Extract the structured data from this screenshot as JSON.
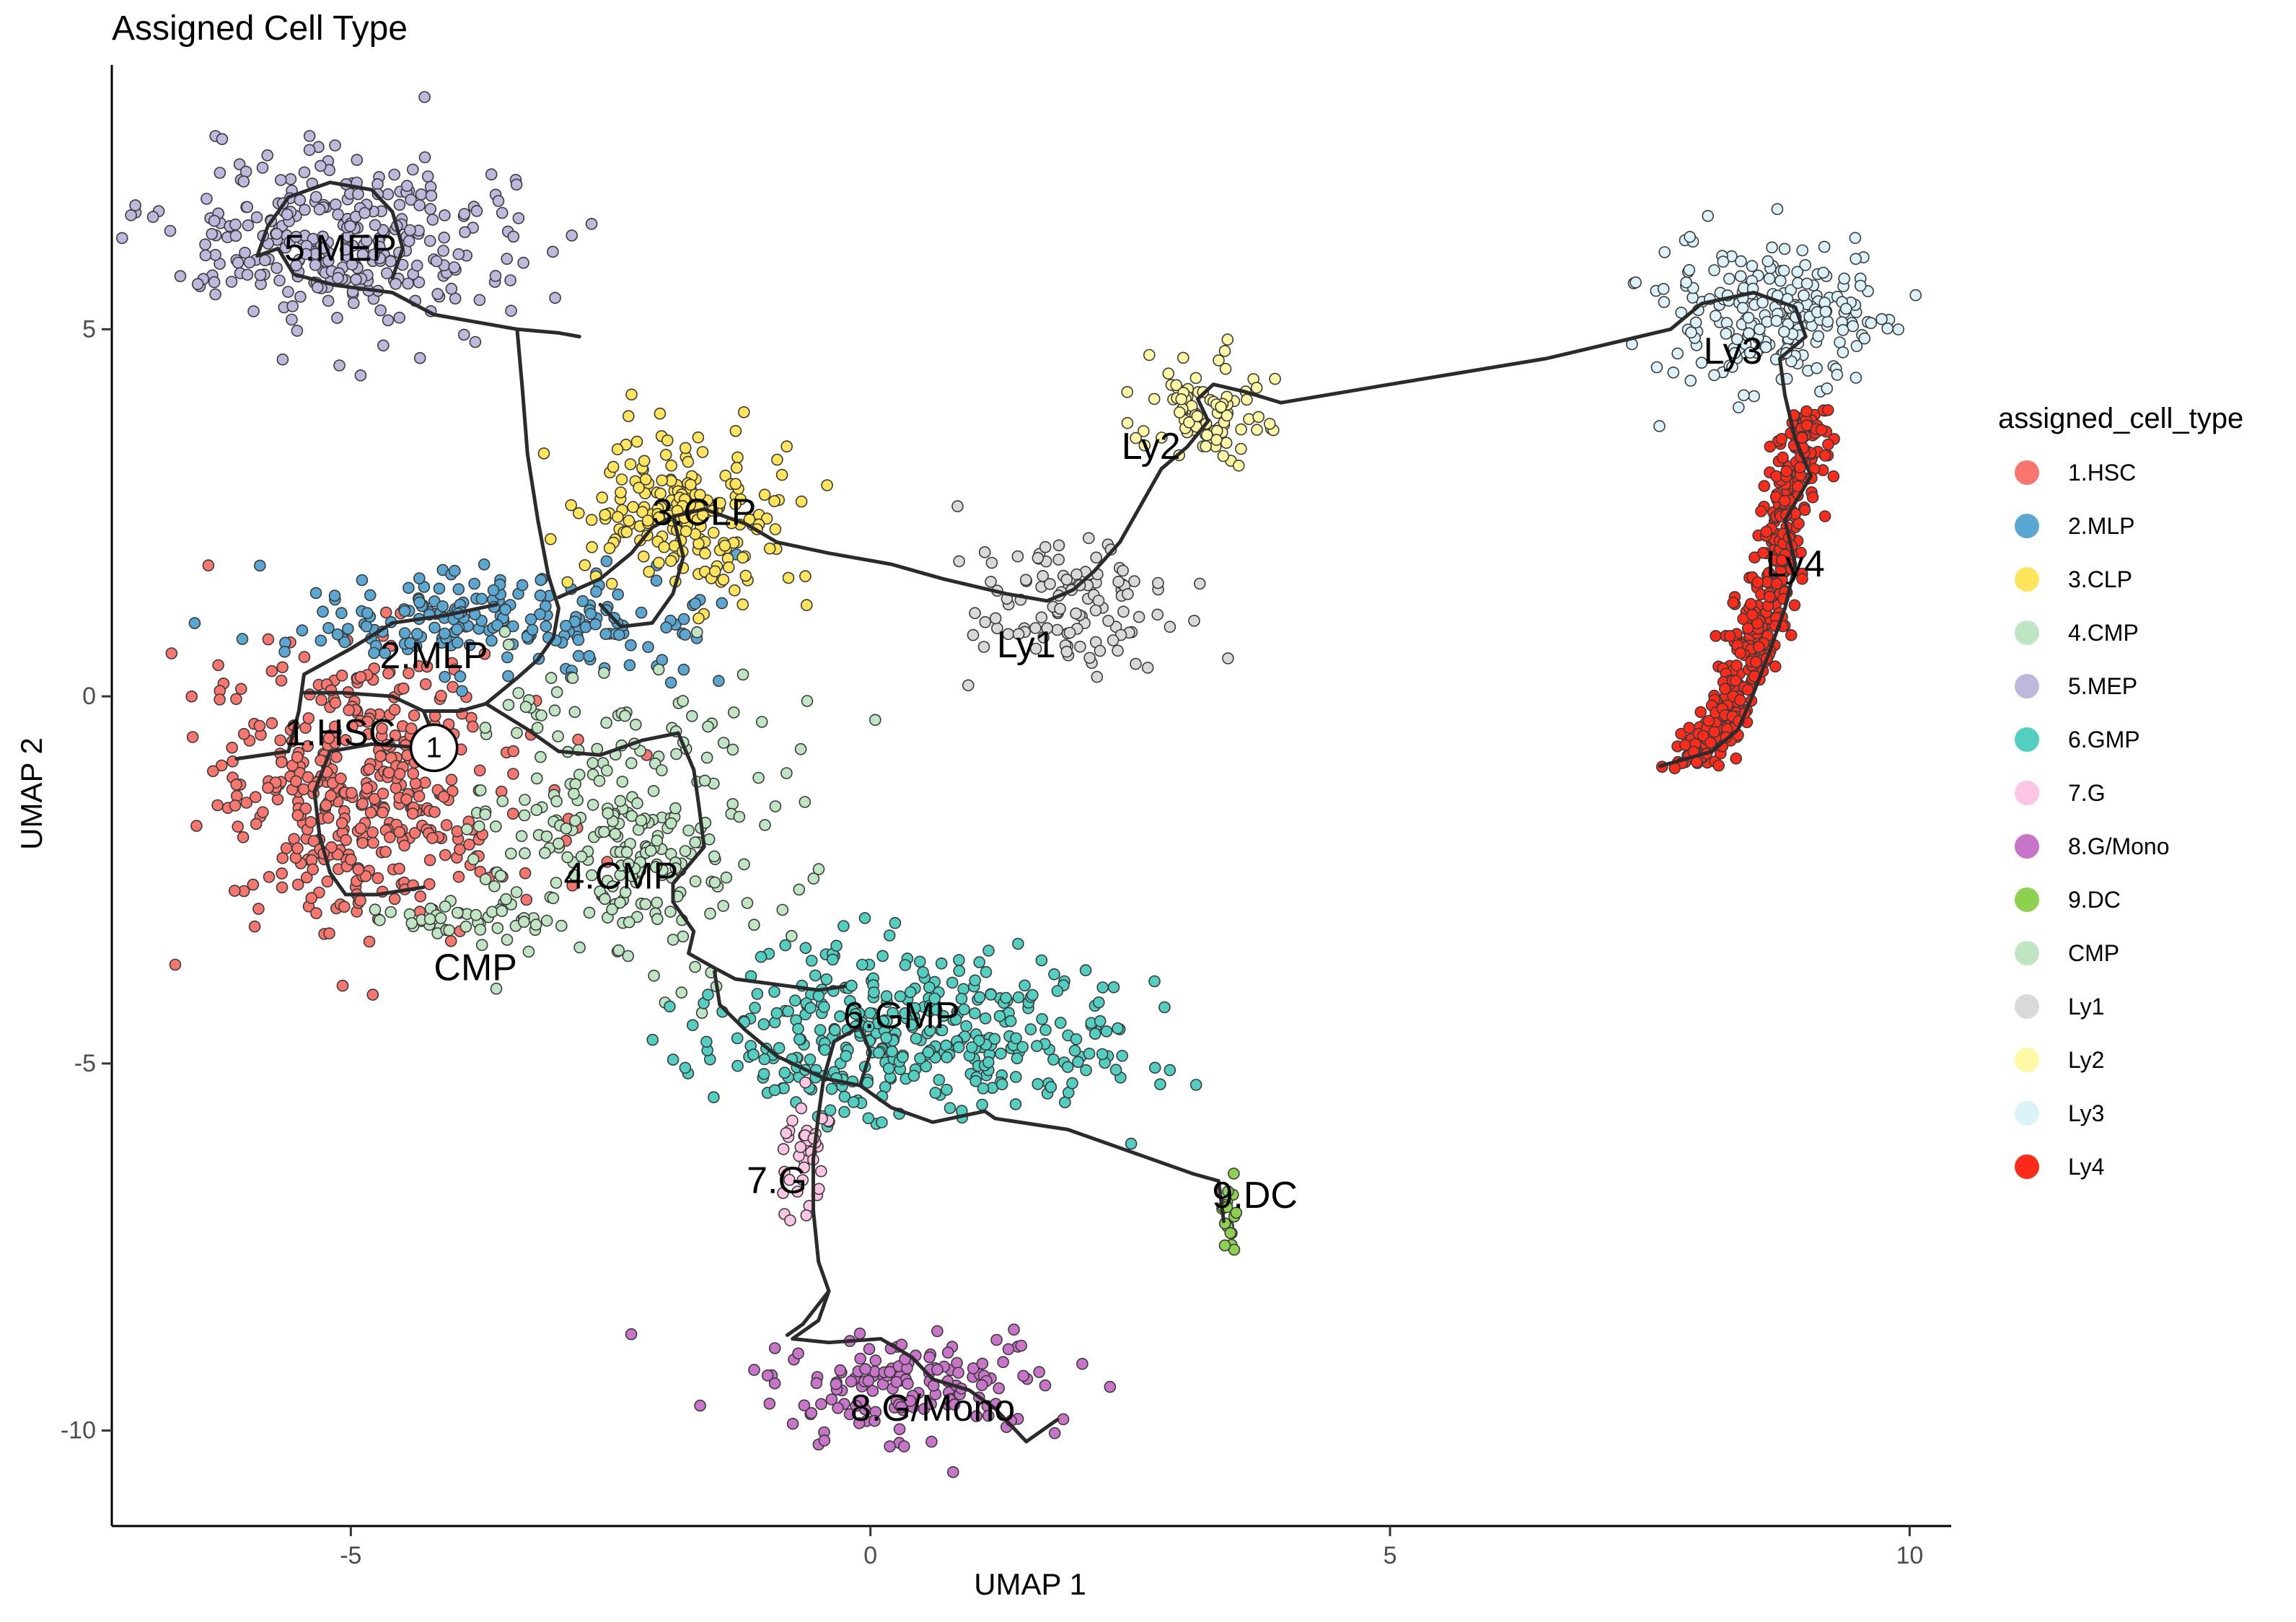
{
  "chart_data": {
    "type": "scatter",
    "title": "Assigned Cell Type",
    "xlabel": "UMAP 1",
    "ylabel": "UMAP 2",
    "xlim": [
      -7.3,
      10.4
    ],
    "ylim": [
      -11.3,
      8.6
    ],
    "x_ticks": [
      -5,
      0,
      5,
      10
    ],
    "y_ticks": [
      -10,
      -5,
      0,
      5
    ],
    "x_tick_labels": [
      "-5",
      "0",
      "5",
      "10"
    ],
    "y_tick_labels": [
      "-10",
      "-5",
      "0",
      "5"
    ],
    "grid": false,
    "legend": {
      "title": "assigned_cell_type",
      "placement": "right",
      "entries": [
        {
          "label": "1.HSC",
          "color": "#F8766D"
        },
        {
          "label": "2.MLP",
          "color": "#5AA8D2"
        },
        {
          "label": "3.CLP",
          "color": "#FFE55C"
        },
        {
          "label": "4.CMP",
          "color": "#BFE5C2"
        },
        {
          "label": "5.MEP",
          "color": "#BDB8DC"
        },
        {
          "label": "6.GMP",
          "color": "#52CFC1"
        },
        {
          "label": "7.G",
          "color": "#FCC5E3"
        },
        {
          "label": "8.G/Mono",
          "color": "#C874C8"
        },
        {
          "label": "9.DC",
          "color": "#8ED14F"
        },
        {
          "label": "CMP",
          "color": "#BFE5C2"
        },
        {
          "label": "Ly1",
          "color": "#D9D9D9"
        },
        {
          "label": "Ly2",
          "color": "#FFF9A6"
        },
        {
          "label": "Ly3",
          "color": "#DCF2F9"
        },
        {
          "label": "Ly4",
          "color": "#FF2B1A"
        }
      ]
    },
    "clusters": [
      {
        "label": "1.HSC",
        "cx": -4.9,
        "cy": -1.3,
        "sx": 0.75,
        "sy": 1.0,
        "n": 420
      },
      {
        "label": "2.MLP",
        "cx": -3.6,
        "cy": 1.0,
        "sx": 1.0,
        "sy": 0.35,
        "n": 200
      },
      {
        "label": "3.CLP",
        "cx": -1.8,
        "cy": 2.5,
        "sx": 0.55,
        "sy": 0.55,
        "n": 200
      },
      {
        "label": "4.CMP",
        "cx": -2.3,
        "cy": -1.8,
        "sx": 0.75,
        "sy": 1.0,
        "n": 260
      },
      {
        "label": "5.MEP",
        "cx": -5.0,
        "cy": 6.2,
        "sx": 0.85,
        "sy": 0.65,
        "n": 300
      },
      {
        "label": "6.GMP",
        "cx": 0.4,
        "cy": -4.6,
        "sx": 1.0,
        "sy": 0.55,
        "n": 380
      },
      {
        "label": "7.G",
        "cx": -0.65,
        "cy": -6.2,
        "sx": 0.13,
        "sy": 0.45,
        "n": 35
      },
      {
        "label": "8.G/Mono",
        "cx": 0.4,
        "cy": -9.4,
        "sx": 0.75,
        "sy": 0.35,
        "n": 150
      },
      {
        "label": "9.DC",
        "cx": 3.45,
        "cy": -7.1,
        "sx": 0.05,
        "sy": 0.3,
        "n": 18
      },
      {
        "label": "CMP",
        "cx": -3.8,
        "cy": -3.0,
        "sx": 0.45,
        "sy": 0.18,
        "n": 45
      },
      {
        "label": "Ly1",
        "cx": 1.9,
        "cy": 1.3,
        "sx": 0.55,
        "sy": 0.45,
        "n": 110
      },
      {
        "label": "Ly2",
        "cx": 3.2,
        "cy": 3.8,
        "sx": 0.35,
        "sy": 0.35,
        "n": 90
      },
      {
        "label": "Ly3",
        "cx": 8.7,
        "cy": 5.2,
        "sx": 0.55,
        "sy": 0.5,
        "n": 220
      },
      {
        "label": "Ly4",
        "cx": 8.6,
        "cy": 1.3,
        "sx": 0.38,
        "sy": 1.35,
        "n": 420
      }
    ],
    "annotations": [
      {
        "text": "1.HSC",
        "x": -5.1,
        "y": -0.5
      },
      {
        "text": "2.MLP",
        "x": -4.2,
        "y": 0.55
      },
      {
        "text": "3.CLP",
        "x": -1.6,
        "y": 2.5
      },
      {
        "text": "4.CMP",
        "x": -2.4,
        "y": -2.45
      },
      {
        "text": "5.MEP",
        "x": -5.1,
        "y": 6.1
      },
      {
        "text": "6.GMP",
        "x": 0.3,
        "y": -4.35
      },
      {
        "text": "7.G",
        "x": -0.9,
        "y": -6.6
      },
      {
        "text": "8.G/Mono",
        "x": 0.6,
        "y": -9.7
      },
      {
        "text": "9.DC",
        "x": 3.7,
        "y": -6.8
      },
      {
        "text": "CMP",
        "x": -3.8,
        "y": -3.7
      },
      {
        "text": "Ly1",
        "x": 1.5,
        "y": 0.7
      },
      {
        "text": "Ly2",
        "x": 2.7,
        "y": 3.4
      },
      {
        "text": "Ly3",
        "x": 8.3,
        "y": 4.7
      },
      {
        "text": "Ly4",
        "x": 8.9,
        "y": 1.8
      }
    ],
    "root": {
      "label": "1",
      "x": -4.2,
      "y": -0.7
    },
    "trajectory": [
      [
        [
          -3.6,
          1.25
        ],
        [
          -4.1,
          1.1
        ],
        [
          -4.6,
          1.0
        ],
        [
          -5.0,
          0.65
        ],
        [
          -5.45,
          0.3
        ],
        [
          -5.5,
          -0.2
        ],
        [
          -5.6,
          -0.75
        ],
        [
          -6.1,
          -0.85
        ]
      ],
      [
        [
          -5.45,
          0.05
        ],
        [
          -5.1,
          0.05
        ],
        [
          -4.6,
          0.0
        ],
        [
          -4.3,
          -0.2
        ],
        [
          -4.2,
          -0.55
        ],
        [
          -4.3,
          -0.7
        ],
        [
          -4.8,
          -0.65
        ],
        [
          -5.2,
          -0.75
        ],
        [
          -5.35,
          -1.3
        ],
        [
          -5.3,
          -1.9
        ],
        [
          -5.2,
          -2.4
        ],
        [
          -5.05,
          -2.7
        ],
        [
          -4.75,
          -2.7
        ],
        [
          -4.3,
          -2.6
        ]
      ],
      [
        [
          -4.3,
          -0.2
        ],
        [
          -3.95,
          -0.2
        ],
        [
          -3.7,
          -0.1
        ],
        [
          -3.4,
          0.25
        ],
        [
          -3.2,
          0.5
        ],
        [
          -3.05,
          0.8
        ],
        [
          -3.0,
          1.2
        ],
        [
          -3.1,
          1.65
        ],
        [
          -3.2,
          2.4
        ],
        [
          -3.3,
          3.3
        ],
        [
          -3.35,
          4.2
        ],
        [
          -3.4,
          5.0
        ]
      ],
      [
        [
          -3.4,
          5.0
        ],
        [
          -3.8,
          5.1
        ],
        [
          -4.2,
          5.2
        ],
        [
          -4.6,
          5.5
        ],
        [
          -5.15,
          5.6
        ],
        [
          -5.55,
          5.75
        ],
        [
          -5.7,
          6.1
        ],
        [
          -5.9,
          6.0
        ],
        [
          -5.8,
          6.4
        ],
        [
          -5.6,
          6.8
        ],
        [
          -5.2,
          7.0
        ],
        [
          -4.8,
          6.9
        ],
        [
          -4.6,
          6.6
        ],
        [
          -4.5,
          6.1
        ],
        [
          -4.6,
          5.7
        ]
      ],
      [
        [
          -3.4,
          5.0
        ],
        [
          -3.0,
          4.95
        ],
        [
          -2.8,
          4.9
        ]
      ],
      [
        [
          -3.0,
          1.35
        ],
        [
          -2.6,
          1.6
        ],
        [
          -2.3,
          1.95
        ],
        [
          -2.1,
          2.3
        ],
        [
          -1.9,
          2.45
        ],
        [
          -1.6,
          2.55
        ],
        [
          -1.2,
          2.35
        ],
        [
          -0.9,
          2.1
        ],
        [
          -0.4,
          1.95
        ],
        [
          0.2,
          1.8
        ],
        [
          0.7,
          1.6
        ],
        [
          1.3,
          1.4
        ],
        [
          1.7,
          1.3
        ],
        [
          1.95,
          1.45
        ],
        [
          2.15,
          1.7
        ],
        [
          2.4,
          2.1
        ],
        [
          2.6,
          2.6
        ],
        [
          2.8,
          3.1
        ],
        [
          3.05,
          3.4
        ],
        [
          3.25,
          3.75
        ],
        [
          3.15,
          4.05
        ],
        [
          3.3,
          4.25
        ],
        [
          3.6,
          4.15
        ],
        [
          3.95,
          4.0
        ],
        [
          5.0,
          4.25
        ],
        [
          6.5,
          4.6
        ],
        [
          7.7,
          5.0
        ],
        [
          8.0,
          5.35
        ],
        [
          8.5,
          5.5
        ],
        [
          8.9,
          5.3
        ],
        [
          9.0,
          4.9
        ],
        [
          8.75,
          4.6
        ],
        [
          8.8,
          4.1
        ],
        [
          8.9,
          3.5
        ],
        [
          9.05,
          3.0
        ],
        [
          8.8,
          2.4
        ],
        [
          8.9,
          1.8
        ],
        [
          8.8,
          1.2
        ],
        [
          8.65,
          0.6
        ],
        [
          8.5,
          0.05
        ],
        [
          8.35,
          -0.45
        ],
        [
          8.1,
          -0.75
        ],
        [
          7.6,
          -0.95
        ]
      ],
      [
        [
          -1.9,
          2.45
        ],
        [
          -1.8,
          1.9
        ],
        [
          -1.9,
          1.4
        ],
        [
          -2.1,
          1.0
        ],
        [
          -2.4,
          0.95
        ],
        [
          -2.6,
          1.25
        ]
      ],
      [
        [
          -3.7,
          -0.1
        ],
        [
          -3.3,
          -0.45
        ],
        [
          -3.0,
          -0.75
        ],
        [
          -2.6,
          -0.8
        ],
        [
          -2.2,
          -0.6
        ],
        [
          -1.85,
          -0.5
        ],
        [
          -1.7,
          -1.0
        ],
        [
          -1.65,
          -1.5
        ],
        [
          -1.6,
          -2.05
        ],
        [
          -1.9,
          -2.55
        ],
        [
          -1.9,
          -2.8
        ],
        [
          -1.7,
          -3.2
        ],
        [
          -1.75,
          -3.5
        ],
        [
          -1.5,
          -3.7
        ],
        [
          -1.3,
          -3.85
        ],
        [
          -0.5,
          -4.0
        ],
        [
          -0.25,
          -3.95
        ]
      ],
      [
        [
          -1.5,
          -3.75
        ],
        [
          -1.45,
          -4.2
        ],
        [
          -1.2,
          -4.55
        ],
        [
          -0.9,
          -4.9
        ],
        [
          -0.45,
          -5.2
        ],
        [
          -0.1,
          -5.3
        ],
        [
          0.2,
          -5.6
        ],
        [
          0.6,
          -5.8
        ],
        [
          1.1,
          -5.65
        ],
        [
          1.2,
          -5.75
        ],
        [
          1.9,
          -5.9
        ],
        [
          3.1,
          -6.5
        ],
        [
          3.35,
          -6.6
        ],
        [
          3.4,
          -7.15
        ]
      ],
      [
        [
          -0.45,
          -5.2
        ],
        [
          -0.35,
          -4.7
        ],
        [
          -0.1,
          -4.5
        ],
        [
          0.0,
          -4.85
        ],
        [
          -0.1,
          -5.3
        ]
      ],
      [
        [
          -0.45,
          -5.2
        ],
        [
          -0.5,
          -5.7
        ],
        [
          -0.55,
          -6.3
        ],
        [
          -0.55,
          -7.0
        ],
        [
          -0.5,
          -7.7
        ],
        [
          -0.4,
          -8.1
        ],
        [
          -0.5,
          -8.5
        ],
        [
          -0.75,
          -8.75
        ],
        [
          -0.4,
          -8.8
        ],
        [
          0.1,
          -8.75
        ],
        [
          0.4,
          -9.0
        ],
        [
          0.6,
          -9.3
        ],
        [
          0.95,
          -9.45
        ],
        [
          1.2,
          -9.7
        ],
        [
          1.5,
          -10.15
        ],
        [
          1.8,
          -9.85
        ]
      ],
      [
        [
          -0.4,
          -8.1
        ],
        [
          -0.65,
          -8.55
        ],
        [
          -0.8,
          -8.7
        ]
      ]
    ]
  }
}
